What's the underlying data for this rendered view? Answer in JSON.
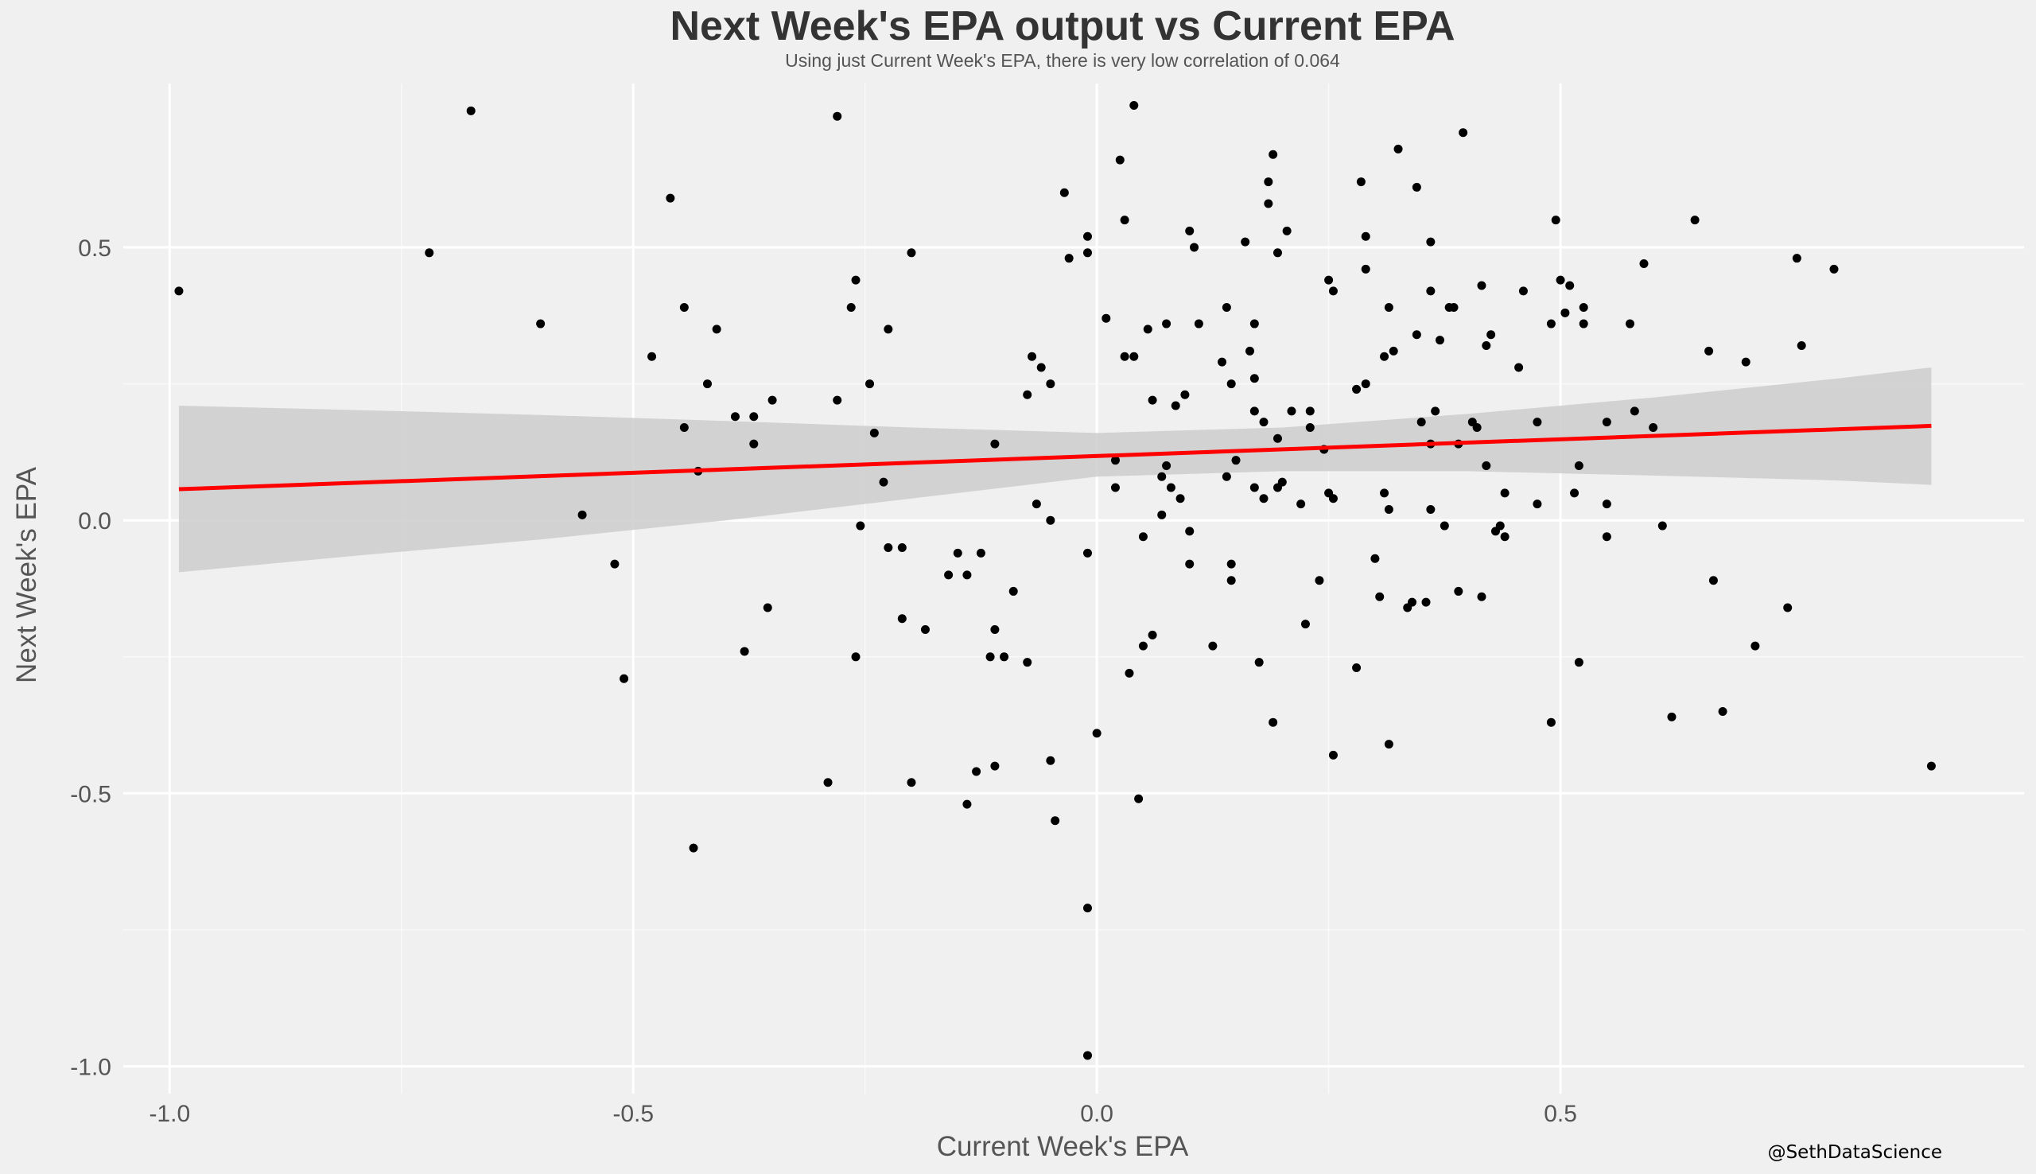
{
  "chart_data": {
    "type": "scatter",
    "title": "Next Week's EPA output vs Current EPA",
    "subtitle": "Using just Current Week's EPA, there is very low correlation of 0.064",
    "xlabel": "Current Week's EPA",
    "ylabel": "Next Week's EPA",
    "caption": "@SethDataScience",
    "xlim": [
      -1.05,
      1.0
    ],
    "ylim": [
      -1.05,
      0.8
    ],
    "x_ticks": [
      -1.0,
      -0.5,
      0.0,
      0.5
    ],
    "x_tick_labels": [
      "-1.0",
      "-0.5",
      "0.0",
      "0.5"
    ],
    "y_ticks": [
      -1.0,
      -0.5,
      0.0,
      0.5
    ],
    "y_tick_labels": [
      "-1.0",
      "-0.5",
      "0.0",
      "0.5"
    ],
    "grid": true,
    "legend": "none",
    "colors": {
      "background": "#f0f0f0",
      "grid": "#ffffff",
      "points": "#000000",
      "fit_line": "#ff0000",
      "confidence_band": "#cccccc"
    },
    "fit": {
      "method": "linear",
      "x": [
        -0.99,
        0.9
      ],
      "y": [
        0.057,
        0.173
      ],
      "ci_x": [
        -0.99,
        -0.8,
        -0.6,
        -0.4,
        -0.2,
        0.0,
        0.2,
        0.4,
        0.6,
        0.8,
        0.9
      ],
      "ci_lower": [
        -0.095,
        -0.065,
        -0.035,
        0.0,
        0.04,
        0.08,
        0.09,
        0.09,
        0.082,
        0.073,
        0.065
      ],
      "ci_upper": [
        0.21,
        0.202,
        0.193,
        0.182,
        0.17,
        0.16,
        0.17,
        0.195,
        0.225,
        0.26,
        0.28
      ]
    },
    "series": [
      {
        "points": [
          [
            -0.99,
            0.42
          ],
          [
            -0.72,
            0.49
          ],
          [
            -0.675,
            0.75
          ],
          [
            -0.6,
            0.36
          ],
          [
            -0.555,
            0.01
          ],
          [
            -0.52,
            -0.08
          ],
          [
            -0.51,
            -0.29
          ],
          [
            -0.48,
            0.3
          ],
          [
            -0.46,
            0.59
          ],
          [
            -0.445,
            0.39
          ],
          [
            -0.445,
            0.17
          ],
          [
            -0.435,
            -0.6
          ],
          [
            -0.43,
            0.09
          ],
          [
            -0.42,
            0.25
          ],
          [
            -0.41,
            0.35
          ],
          [
            -0.39,
            0.19
          ],
          [
            -0.38,
            -0.24
          ],
          [
            -0.37,
            0.19
          ],
          [
            -0.37,
            0.14
          ],
          [
            -0.355,
            -0.16
          ],
          [
            -0.35,
            0.22
          ],
          [
            -0.29,
            -0.48
          ],
          [
            -0.28,
            0.74
          ],
          [
            -0.28,
            0.22
          ],
          [
            -0.265,
            0.39
          ],
          [
            -0.26,
            0.44
          ],
          [
            -0.26,
            -0.25
          ],
          [
            -0.255,
            -0.01
          ],
          [
            -0.245,
            0.25
          ],
          [
            -0.24,
            0.16
          ],
          [
            -0.23,
            0.07
          ],
          [
            -0.225,
            0.35
          ],
          [
            -0.225,
            -0.05
          ],
          [
            -0.21,
            -0.18
          ],
          [
            -0.21,
            -0.05
          ],
          [
            -0.2,
            0.49
          ],
          [
            -0.2,
            -0.48
          ],
          [
            -0.185,
            -0.2
          ],
          [
            -0.16,
            -0.1
          ],
          [
            -0.15,
            -0.06
          ],
          [
            -0.14,
            -0.1
          ],
          [
            -0.14,
            -0.52
          ],
          [
            -0.13,
            -0.46
          ],
          [
            -0.125,
            -0.06
          ],
          [
            -0.115,
            -0.25
          ],
          [
            -0.11,
            -0.2
          ],
          [
            -0.11,
            -0.45
          ],
          [
            -0.11,
            0.14
          ],
          [
            -0.1,
            -0.25
          ],
          [
            -0.09,
            -0.13
          ],
          [
            -0.075,
            -0.26
          ],
          [
            -0.075,
            0.23
          ],
          [
            -0.07,
            0.3
          ],
          [
            -0.06,
            0.28
          ],
          [
            -0.065,
            0.03
          ],
          [
            -0.05,
            -0.44
          ],
          [
            -0.05,
            0.25
          ],
          [
            -0.05,
            0.0
          ],
          [
            -0.045,
            -0.55
          ],
          [
            -0.035,
            0.6
          ],
          [
            -0.03,
            0.48
          ],
          [
            -0.01,
            0.52
          ],
          [
            -0.01,
            0.49
          ],
          [
            -0.01,
            -0.06
          ],
          [
            -0.01,
            -0.71
          ],
          [
            -0.01,
            -0.98
          ],
          [
            0.0,
            -0.39
          ],
          [
            0.01,
            0.37
          ],
          [
            0.02,
            0.11
          ],
          [
            0.02,
            0.06
          ],
          [
            0.025,
            0.66
          ],
          [
            0.03,
            0.55
          ],
          [
            0.03,
            0.3
          ],
          [
            0.035,
            -0.28
          ],
          [
            0.04,
            0.3
          ],
          [
            0.04,
            0.76
          ],
          [
            0.045,
            -0.51
          ],
          [
            0.05,
            -0.03
          ],
          [
            0.05,
            -0.23
          ],
          [
            0.055,
            0.35
          ],
          [
            0.06,
            -0.21
          ],
          [
            0.06,
            0.22
          ],
          [
            0.07,
            0.08
          ],
          [
            0.07,
            0.01
          ],
          [
            0.075,
            0.1
          ],
          [
            0.075,
            0.36
          ],
          [
            0.08,
            0.06
          ],
          [
            0.085,
            0.21
          ],
          [
            0.09,
            0.04
          ],
          [
            0.095,
            0.23
          ],
          [
            0.1,
            -0.02
          ],
          [
            0.1,
            -0.08
          ],
          [
            0.1,
            0.53
          ],
          [
            0.105,
            0.5
          ],
          [
            0.11,
            0.36
          ],
          [
            0.125,
            -0.23
          ],
          [
            0.135,
            0.29
          ],
          [
            0.14,
            0.39
          ],
          [
            0.14,
            0.08
          ],
          [
            0.145,
            -0.08
          ],
          [
            0.145,
            -0.11
          ],
          [
            0.145,
            0.25
          ],
          [
            0.15,
            0.11
          ],
          [
            0.16,
            0.51
          ],
          [
            0.165,
            0.31
          ],
          [
            0.17,
            0.36
          ],
          [
            0.17,
            0.2
          ],
          [
            0.17,
            0.26
          ],
          [
            0.17,
            0.06
          ],
          [
            0.175,
            -0.26
          ],
          [
            0.18,
            0.04
          ],
          [
            0.18,
            0.18
          ],
          [
            0.185,
            0.62
          ],
          [
            0.185,
            0.58
          ],
          [
            0.19,
            -0.37
          ],
          [
            0.19,
            0.67
          ],
          [
            0.195,
            0.49
          ],
          [
            0.195,
            0.15
          ],
          [
            0.195,
            0.06
          ],
          [
            0.2,
            0.07
          ],
          [
            0.205,
            0.53
          ],
          [
            0.21,
            0.2
          ],
          [
            0.22,
            0.03
          ],
          [
            0.225,
            -0.19
          ],
          [
            0.23,
            0.2
          ],
          [
            0.23,
            0.17
          ],
          [
            0.24,
            -0.11
          ],
          [
            0.245,
            0.13
          ],
          [
            0.25,
            0.05
          ],
          [
            0.25,
            0.44
          ],
          [
            0.255,
            0.42
          ],
          [
            0.255,
            0.04
          ],
          [
            0.255,
            -0.43
          ],
          [
            0.28,
            0.24
          ],
          [
            0.28,
            -0.27
          ],
          [
            0.285,
            0.62
          ],
          [
            0.29,
            0.52
          ],
          [
            0.29,
            0.25
          ],
          [
            0.29,
            0.46
          ],
          [
            0.3,
            -0.07
          ],
          [
            0.305,
            -0.14
          ],
          [
            0.31,
            0.3
          ],
          [
            0.31,
            0.05
          ],
          [
            0.315,
            0.39
          ],
          [
            0.315,
            0.02
          ],
          [
            0.315,
            -0.41
          ],
          [
            0.32,
            0.31
          ],
          [
            0.325,
            0.68
          ],
          [
            0.335,
            -0.16
          ],
          [
            0.34,
            -0.15
          ],
          [
            0.345,
            0.61
          ],
          [
            0.345,
            0.34
          ],
          [
            0.35,
            0.18
          ],
          [
            0.355,
            -0.15
          ],
          [
            0.36,
            0.51
          ],
          [
            0.36,
            0.42
          ],
          [
            0.36,
            0.14
          ],
          [
            0.36,
            0.02
          ],
          [
            0.365,
            0.2
          ],
          [
            0.37,
            0.33
          ],
          [
            0.375,
            -0.01
          ],
          [
            0.38,
            0.39
          ],
          [
            0.385,
            0.39
          ],
          [
            0.39,
            0.14
          ],
          [
            0.39,
            -0.13
          ],
          [
            0.395,
            0.71
          ],
          [
            0.405,
            0.18
          ],
          [
            0.41,
            0.17
          ],
          [
            0.415,
            0.43
          ],
          [
            0.415,
            -0.14
          ],
          [
            0.42,
            0.32
          ],
          [
            0.42,
            0.1
          ],
          [
            0.425,
            0.34
          ],
          [
            0.43,
            -0.02
          ],
          [
            0.435,
            -0.01
          ],
          [
            0.44,
            -0.03
          ],
          [
            0.44,
            0.05
          ],
          [
            0.455,
            0.28
          ],
          [
            0.46,
            0.42
          ],
          [
            0.475,
            0.03
          ],
          [
            0.475,
            0.18
          ],
          [
            0.49,
            -0.37
          ],
          [
            0.49,
            0.36
          ],
          [
            0.495,
            0.55
          ],
          [
            0.5,
            0.44
          ],
          [
            0.505,
            0.38
          ],
          [
            0.51,
            0.43
          ],
          [
            0.515,
            0.05
          ],
          [
            0.52,
            0.1
          ],
          [
            0.52,
            -0.26
          ],
          [
            0.525,
            0.36
          ],
          [
            0.525,
            0.39
          ],
          [
            0.55,
            0.18
          ],
          [
            0.55,
            0.03
          ],
          [
            0.55,
            -0.03
          ],
          [
            0.575,
            0.36
          ],
          [
            0.58,
            0.2
          ],
          [
            0.59,
            0.47
          ],
          [
            0.6,
            0.17
          ],
          [
            0.61,
            -0.01
          ],
          [
            0.62,
            -0.36
          ],
          [
            0.645,
            0.55
          ],
          [
            0.66,
            0.31
          ],
          [
            0.665,
            -0.11
          ],
          [
            0.675,
            -0.35
          ],
          [
            0.7,
            0.29
          ],
          [
            0.71,
            -0.23
          ],
          [
            0.745,
            -0.16
          ],
          [
            0.755,
            0.48
          ],
          [
            0.76,
            0.32
          ],
          [
            0.795,
            0.46
          ],
          [
            0.9,
            -0.45
          ]
        ]
      }
    ]
  }
}
